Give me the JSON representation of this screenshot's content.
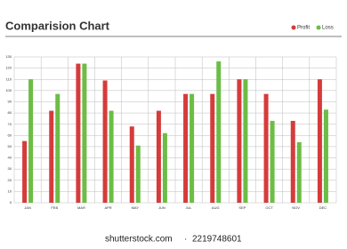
{
  "chart_data": {
    "type": "bar",
    "title": "Comparision Chart",
    "categories": [
      "JAN",
      "FEB",
      "MAR",
      "APR",
      "MAY",
      "JUN",
      "JUL",
      "AUG",
      "SEP",
      "OCT",
      "NOV",
      "DEC"
    ],
    "series": [
      {
        "name": "Profit",
        "color": "#d63b3b",
        "values": [
          55,
          82,
          124,
          109,
          68,
          82,
          97,
          97,
          110,
          97,
          73,
          110
        ]
      },
      {
        "name": "Loss",
        "color": "#6cbd45",
        "values": [
          110,
          97,
          124,
          82,
          51,
          62,
          97,
          126,
          110,
          73,
          54,
          83
        ]
      }
    ],
    "ylim": [
      0,
      130
    ],
    "yticks": [
      0,
      10,
      20,
      30,
      40,
      50,
      60,
      70,
      80,
      90,
      100,
      110,
      120,
      130
    ],
    "grid": true,
    "legend": "top-right"
  },
  "watermark": {
    "site": "shutterstock.com",
    "separator": "·",
    "id": "2219748601"
  }
}
